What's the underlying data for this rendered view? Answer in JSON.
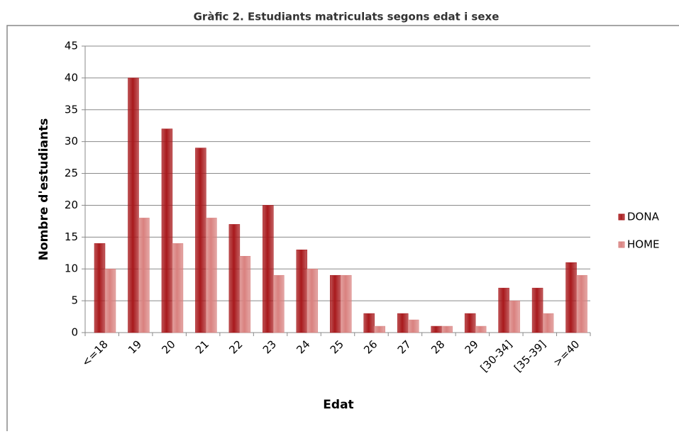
{
  "chart_data": {
    "type": "bar",
    "title": "Gràfic 2. Estudiants matriculats segons edat i sexe",
    "x_label": "Edat",
    "y_label": "Nombre d'estudiants",
    "categories": [
      "<=18",
      "19",
      "20",
      "21",
      "22",
      "23",
      "24",
      "25",
      "26",
      "27",
      "28",
      "29",
      "[30-34]",
      "[35-39]",
      ">=40"
    ],
    "series": [
      {
        "name": "DONA",
        "color": "#a8191c",
        "values": [
          14,
          40,
          32,
          29,
          17,
          20,
          13,
          9,
          3,
          3,
          1,
          3,
          7,
          7,
          11
        ]
      },
      {
        "name": "HOME",
        "color": "#d9817f",
        "values": [
          10,
          18,
          14,
          18,
          12,
          9,
          10,
          9,
          1,
          2,
          1,
          1,
          5,
          3,
          9
        ]
      }
    ],
    "ylim": [
      0,
      45
    ],
    "yticks": [
      0,
      5,
      10,
      15,
      20,
      25,
      30,
      35,
      40,
      45
    ],
    "grid": true,
    "legend": "right"
  }
}
